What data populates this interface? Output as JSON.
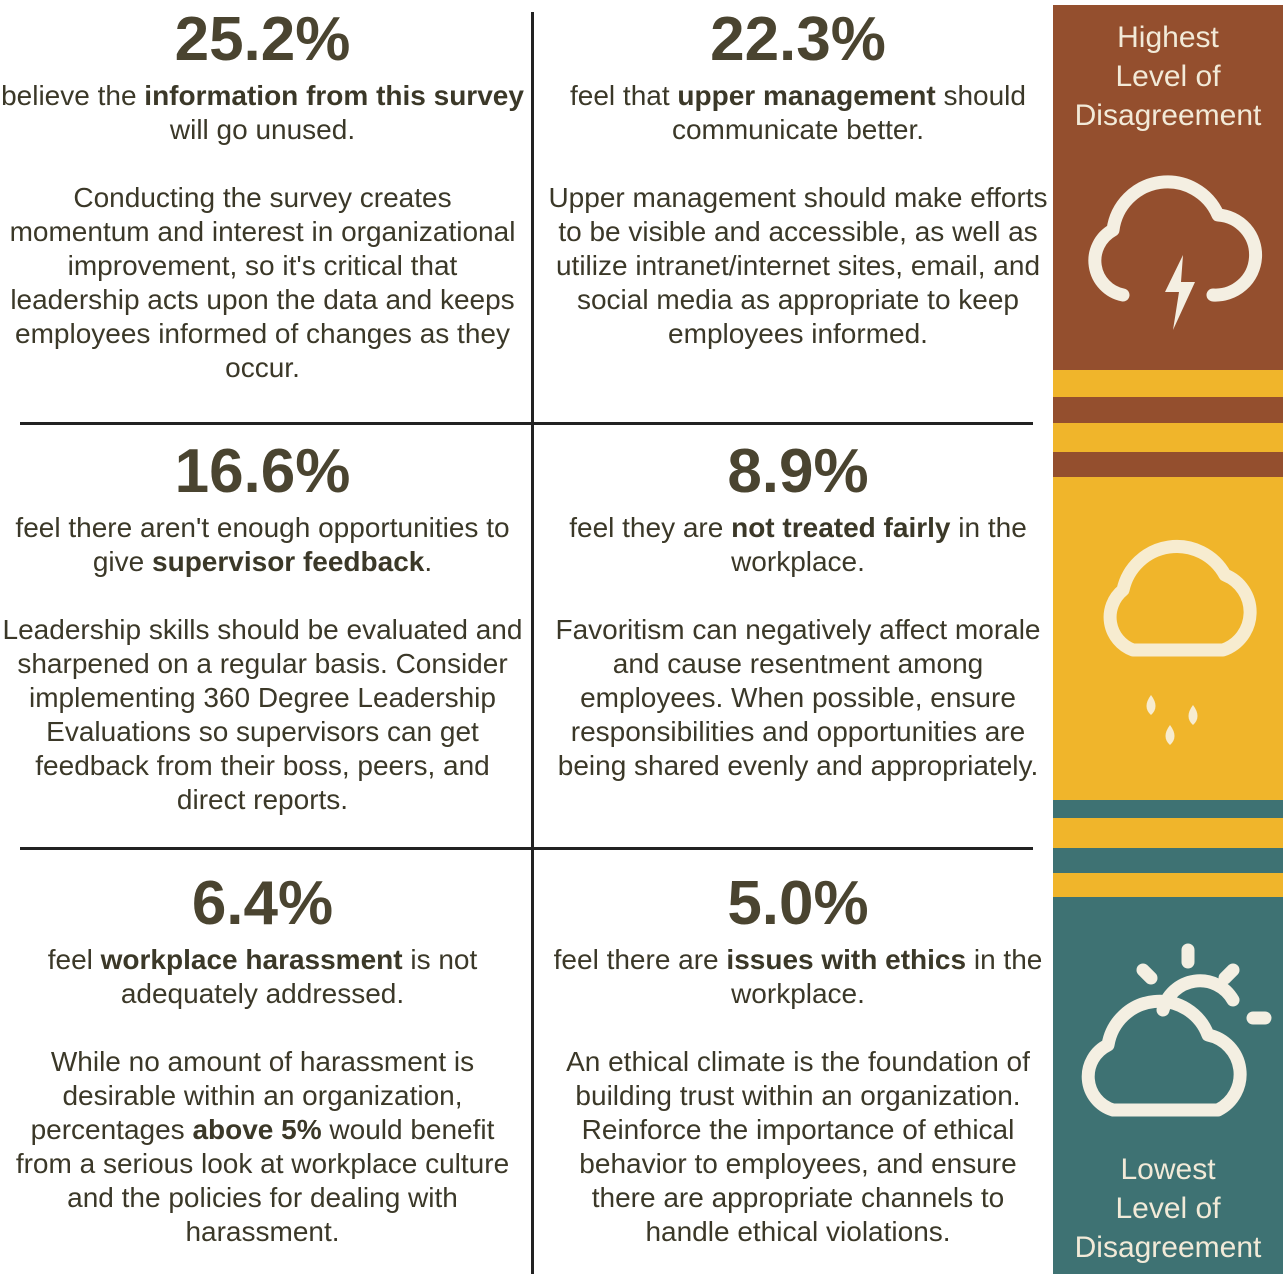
{
  "cells": [
    {
      "stat": "25.2%",
      "lead": [
        {
          "text": "believe the "
        },
        {
          "text": "information from this survey",
          "bold": true
        },
        {
          "text": " will go unused."
        }
      ],
      "body": [
        {
          "text": "Conducting the survey creates momentum and interest in organizational improvement, so it's critical that leadership acts upon the data and keeps employees informed of changes as they occur."
        }
      ]
    },
    {
      "stat": "22.3%",
      "lead": [
        {
          "text": "feel that "
        },
        {
          "text": "upper management",
          "bold": true
        },
        {
          "text": " should communicate better."
        }
      ],
      "body": [
        {
          "text": "Upper management should make efforts to be visible and accessible, as well as utilize intranet/internet sites, email, and social media as appropriate to keep employees informed."
        }
      ]
    },
    {
      "stat": "16.6%",
      "lead": [
        {
          "text": "feel there aren't enough opportunities to give "
        },
        {
          "text": "supervisor feedback",
          "bold": true
        },
        {
          "text": "."
        }
      ],
      "body": [
        {
          "text": "Leadership skills should be evaluated and sharpened on a regular basis. Consider implementing 360 Degree Leadership Evaluations so supervisors can get feedback from their boss, peers, and direct reports."
        }
      ]
    },
    {
      "stat": "8.9%",
      "lead": [
        {
          "text": "feel they are "
        },
        {
          "text": "not treated fairly",
          "bold": true
        },
        {
          "text": " in the workplace."
        }
      ],
      "body": [
        {
          "text": "Favoritism can negatively affect morale and cause resentment among employees. When possible, ensure responsibilities and opportunities are being shared evenly and appropriately."
        }
      ]
    },
    {
      "stat": "6.4%",
      "lead": [
        {
          "text": "feel "
        },
        {
          "text": "workplace harassment",
          "bold": true
        },
        {
          "text": " is not adequately addressed."
        }
      ],
      "body": [
        {
          "text": "While no amount of harassment is desirable within an organization, percentages "
        },
        {
          "text": "above 5%",
          "bold": true
        },
        {
          "text": " would benefit from a serious look at workplace culture and the policies for dealing with harassment."
        }
      ]
    },
    {
      "stat": "5.0%",
      "lead": [
        {
          "text": "feel there are "
        },
        {
          "text": "issues with ethics",
          "bold": true
        },
        {
          "text": " in the workplace."
        }
      ],
      "body": [
        {
          "text": "An ethical climate is the foundation of building trust within an organization. Reinforce the importance of ethical behavior to employees, and ensure there are appropriate channels to handle ethical violations."
        }
      ]
    }
  ],
  "sidebar": {
    "top_label": [
      "Highest",
      "Level of",
      "Disagreement"
    ],
    "bottom_label": [
      "Lowest",
      "Level of",
      "Disagreement"
    ]
  }
}
